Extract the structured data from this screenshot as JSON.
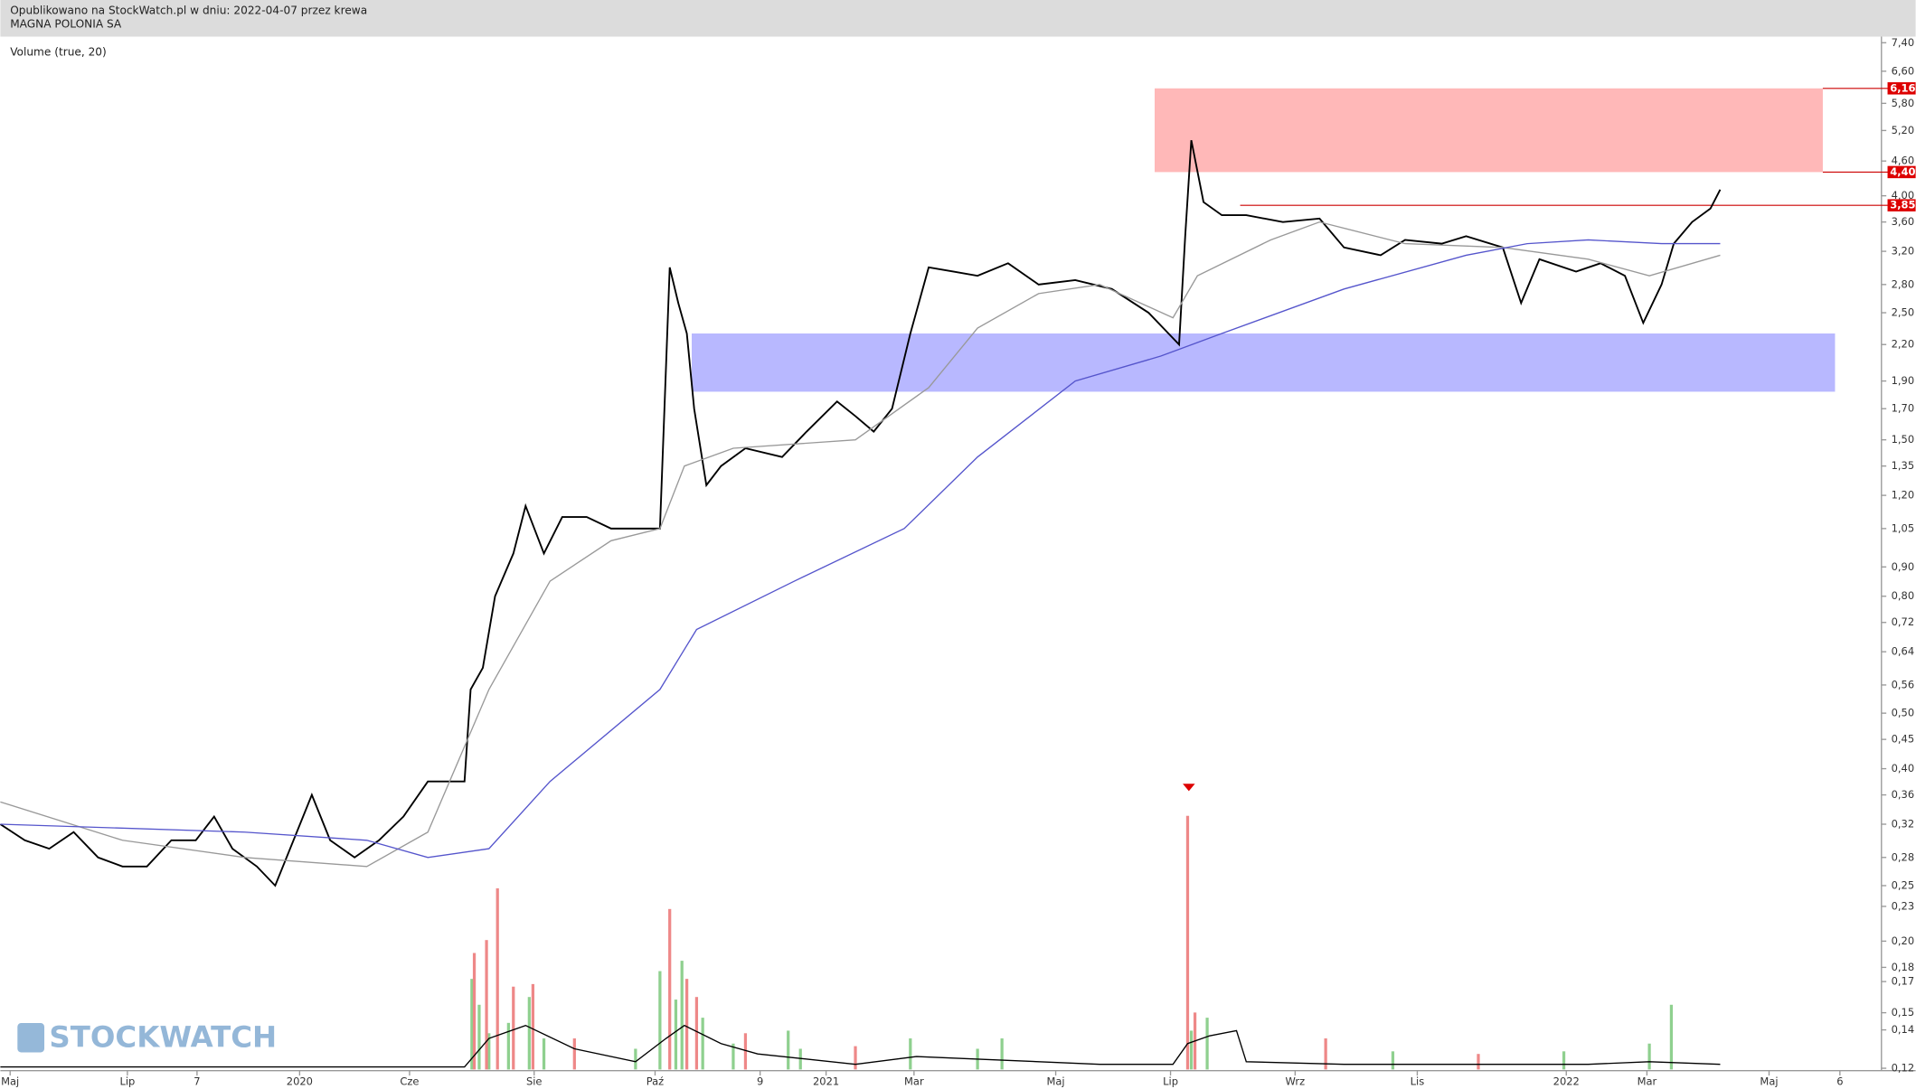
{
  "header": {
    "line1": "Opublikowano na StockWatch.pl w dniu: 2022-04-07 przez krewa",
    "line2": "MAGNA POLONIA SA",
    "indicator": "Volume (true, 20)",
    "watermark": "STOCKWATCH"
  },
  "chart_data": {
    "type": "stock",
    "log_scale": true,
    "ylim": [
      0.12,
      7.4
    ],
    "xlim": [
      0,
      1540
    ],
    "yticks": [
      {
        "value": 7.4,
        "label": "7,40"
      },
      {
        "value": 6.6,
        "label": "6,60"
      },
      {
        "value": 5.8,
        "label": "5,80"
      },
      {
        "value": 5.2,
        "label": "5,20"
      },
      {
        "value": 4.6,
        "label": "4,60"
      },
      {
        "value": 4.0,
        "label": "4,00"
      },
      {
        "value": 3.6,
        "label": "3,60"
      },
      {
        "value": 3.2,
        "label": "3,20"
      },
      {
        "value": 2.8,
        "label": "2,80"
      },
      {
        "value": 2.5,
        "label": "2,50"
      },
      {
        "value": 2.2,
        "label": "2,20"
      },
      {
        "value": 1.9,
        "label": "1,90"
      },
      {
        "value": 1.7,
        "label": "1,70"
      },
      {
        "value": 1.5,
        "label": "1,50"
      },
      {
        "value": 1.35,
        "label": "1,35"
      },
      {
        "value": 1.2,
        "label": "1,20"
      },
      {
        "value": 1.05,
        "label": "1,05"
      },
      {
        "value": 0.9,
        "label": "0,90"
      },
      {
        "value": 0.8,
        "label": "0,80"
      },
      {
        "value": 0.72,
        "label": "0,72"
      },
      {
        "value": 0.64,
        "label": "0,64"
      },
      {
        "value": 0.56,
        "label": "0,56"
      },
      {
        "value": 0.5,
        "label": "0,50"
      },
      {
        "value": 0.45,
        "label": "0,45"
      },
      {
        "value": 0.4,
        "label": "0,40"
      },
      {
        "value": 0.36,
        "label": "0,36"
      },
      {
        "value": 0.32,
        "label": "0,32"
      },
      {
        "value": 0.28,
        "label": "0,28"
      },
      {
        "value": 0.25,
        "label": "0,25"
      },
      {
        "value": 0.23,
        "label": "0,23"
      },
      {
        "value": 0.2,
        "label": "0,20"
      },
      {
        "value": 0.18,
        "label": "0,18"
      },
      {
        "value": 0.17,
        "label": "0,17"
      },
      {
        "value": 0.15,
        "label": "0,15"
      },
      {
        "value": 0.14,
        "label": "0,14"
      },
      {
        "value": 0.12,
        "label": "0,12"
      }
    ],
    "xticks": [
      {
        "value": 8,
        "label": "Maj"
      },
      {
        "value": 104,
        "label": "Lip"
      },
      {
        "value": 161,
        "label": "7"
      },
      {
        "value": 245,
        "label": "2020"
      },
      {
        "value": 335,
        "label": "Cze"
      },
      {
        "value": 437,
        "label": "Sie"
      },
      {
        "value": 536,
        "label": "Paź"
      },
      {
        "value": 622,
        "label": "9"
      },
      {
        "value": 676,
        "label": "2021"
      },
      {
        "value": 748,
        "label": "Mar"
      },
      {
        "value": 864,
        "label": "Maj"
      },
      {
        "value": 958,
        "label": "Lip"
      },
      {
        "value": 1060,
        "label": "Wrz"
      },
      {
        "value": 1160,
        "label": "Lis"
      },
      {
        "value": 1282,
        "label": "2022"
      },
      {
        "value": 1348,
        "label": "Mar"
      },
      {
        "value": 1448,
        "label": "Maj"
      },
      {
        "value": 1506,
        "label": "6"
      }
    ],
    "series": [
      {
        "name": "price",
        "color": "#000000",
        "x": [
          0,
          20,
          40,
          60,
          80,
          100,
          120,
          140,
          160,
          175,
          190,
          210,
          225,
          255,
          270,
          290,
          310,
          330,
          350,
          380,
          385,
          395,
          405,
          420,
          430,
          445,
          460,
          480,
          500,
          520,
          540,
          548,
          555,
          562,
          568,
          578,
          590,
          610,
          640,
          660,
          685,
          700,
          715,
          730,
          745,
          760,
          780,
          800,
          825,
          850,
          880,
          910,
          940,
          965,
          970,
          975,
          985,
          1000,
          1020,
          1050,
          1080,
          1100,
          1130,
          1150,
          1180,
          1200,
          1230,
          1245,
          1260,
          1290,
          1310,
          1330,
          1345,
          1360,
          1370,
          1385,
          1400,
          1408
        ],
        "values": [
          0.32,
          0.3,
          0.29,
          0.31,
          0.28,
          0.27,
          0.27,
          0.3,
          0.3,
          0.33,
          0.29,
          0.27,
          0.25,
          0.36,
          0.3,
          0.28,
          0.3,
          0.33,
          0.38,
          0.38,
          0.55,
          0.6,
          0.8,
          0.95,
          1.15,
          0.95,
          1.1,
          1.1,
          1.05,
          1.05,
          1.05,
          3.0,
          2.6,
          2.3,
          1.7,
          1.25,
          1.35,
          1.45,
          1.4,
          1.55,
          1.75,
          1.65,
          1.55,
          1.7,
          2.3,
          3.0,
          2.95,
          2.9,
          3.05,
          2.8,
          2.85,
          2.75,
          2.5,
          2.2,
          3.4,
          5.0,
          3.9,
          3.7,
          3.7,
          3.6,
          3.65,
          3.25,
          3.15,
          3.35,
          3.3,
          3.4,
          3.25,
          2.6,
          3.1,
          2.95,
          3.05,
          2.9,
          2.4,
          2.8,
          3.3,
          3.6,
          3.8,
          4.1
        ]
      },
      {
        "name": "ma-short",
        "color": "#999999",
        "x": [
          0,
          100,
          200,
          300,
          350,
          400,
          450,
          500,
          540,
          560,
          600,
          700,
          760,
          800,
          850,
          900,
          960,
          980,
          1040,
          1080,
          1150,
          1230,
          1300,
          1350,
          1408
        ],
        "values": [
          0.35,
          0.3,
          0.28,
          0.27,
          0.31,
          0.55,
          0.85,
          1.0,
          1.05,
          1.35,
          1.45,
          1.5,
          1.85,
          2.35,
          2.7,
          2.8,
          2.45,
          2.9,
          3.35,
          3.6,
          3.3,
          3.25,
          3.1,
          2.9,
          3.15
        ]
      },
      {
        "name": "ma-long",
        "color": "#5555cc",
        "x": [
          0,
          200,
          300,
          350,
          400,
          450,
          540,
          570,
          650,
          740,
          800,
          880,
          950,
          1000,
          1100,
          1200,
          1250,
          1300,
          1360,
          1408
        ],
        "values": [
          0.32,
          0.31,
          0.3,
          0.28,
          0.29,
          0.38,
          0.55,
          0.7,
          0.85,
          1.05,
          1.4,
          1.9,
          2.1,
          2.3,
          2.75,
          3.15,
          3.3,
          3.35,
          3.3,
          3.3
        ]
      }
    ],
    "zones": [
      {
        "x": [
          945,
          1492
        ],
        "y": [
          4.4,
          6.16
        ],
        "color": "#ffb8b8"
      },
      {
        "x": [
          566,
          1502
        ],
        "y": [
          1.82,
          2.3
        ],
        "color": "#b8b8ff"
      }
    ],
    "levels": [
      {
        "value": 6.16,
        "label": "6,16",
        "x0": 1492
      },
      {
        "value": 4.4,
        "label": "4,40",
        "x0": 1492
      },
      {
        "value": 3.85,
        "label": "3,85",
        "x0": 1015
      }
    ],
    "volume": {
      "ylim": [
        0,
        100
      ],
      "up": {
        "color": "#8fd08f",
        "x": [
          386,
          392,
          400,
          416,
          433,
          445,
          520,
          540,
          553,
          558,
          575,
          600,
          645,
          655,
          745,
          800,
          820,
          975,
          988,
          1140,
          1280,
          1350,
          1368
        ],
        "values": [
          35,
          25,
          14,
          18,
          28,
          12,
          8,
          38,
          27,
          42,
          20,
          10,
          15,
          8,
          12,
          8,
          12,
          15,
          20,
          7,
          7,
          10,
          25
        ]
      },
      "down": {
        "color": "#ee8888",
        "x": [
          388,
          398,
          407,
          420,
          436,
          470,
          548,
          562,
          570,
          610,
          700,
          972,
          978,
          1085,
          1210
        ],
        "values": [
          45,
          50,
          70,
          32,
          33,
          12,
          62,
          35,
          28,
          14,
          9,
          98,
          22,
          12,
          6
        ]
      },
      "average": {
        "color": "#000000",
        "x": [
          0,
          380,
          400,
          430,
          470,
          520,
          545,
          560,
          590,
          620,
          700,
          750,
          800,
          900,
          960,
          972,
          990,
          1012,
          1020,
          1100,
          1300,
          1350,
          1408
        ],
        "values": [
          1,
          1,
          12,
          17,
          8,
          3,
          12,
          17,
          10,
          6,
          2,
          5,
          4,
          2,
          2,
          10,
          13,
          15,
          3,
          2,
          2,
          3,
          2
        ]
      }
    }
  }
}
